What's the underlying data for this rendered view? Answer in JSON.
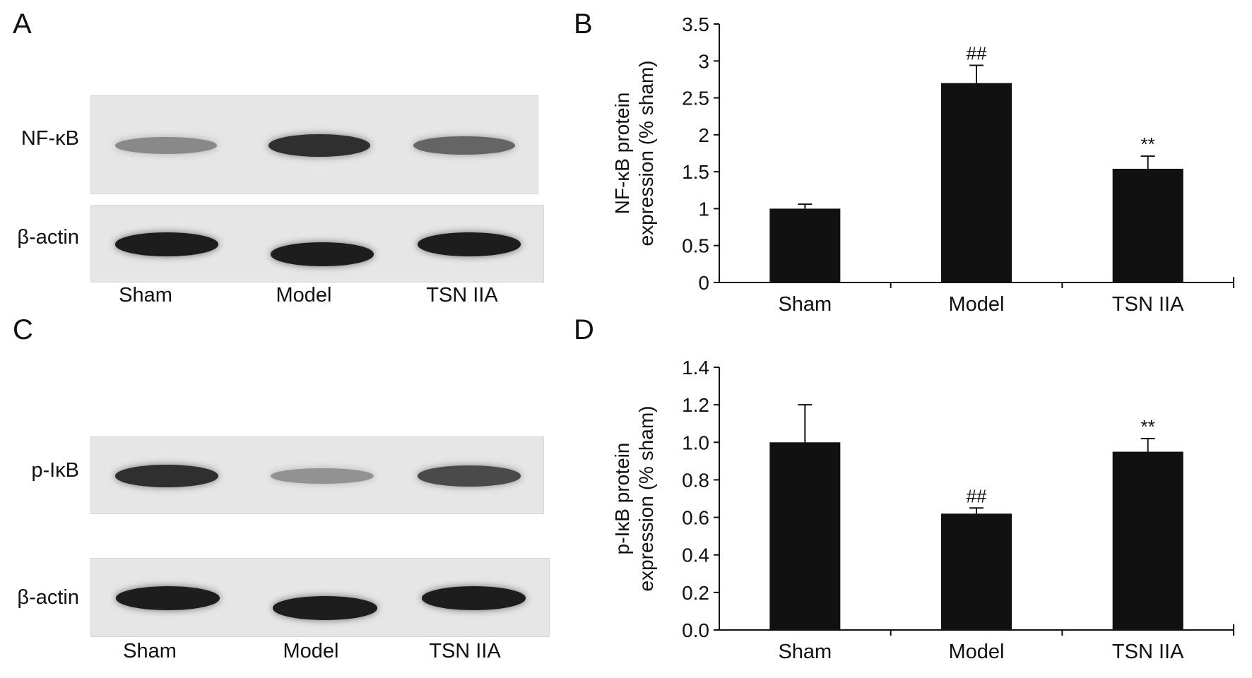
{
  "panels": {
    "A": {
      "letter": "A",
      "rows": [
        {
          "label": "NF-κB",
          "intensities": [
            0.35,
            0.85,
            0.55
          ]
        },
        {
          "label": "β-actin",
          "intensities": [
            0.95,
            0.95,
            0.95
          ]
        }
      ],
      "lanes": [
        "Sham",
        "Model",
        "TSN IIA"
      ]
    },
    "C": {
      "letter": "C",
      "rows": [
        {
          "label": "p-IκB",
          "intensities": [
            0.85,
            0.3,
            0.7
          ]
        },
        {
          "label": "β-actin",
          "intensities": [
            0.95,
            0.95,
            0.95
          ]
        }
      ],
      "lanes": [
        "Sham",
        "Model",
        "TSN IIA"
      ]
    },
    "B": {
      "letter": "B"
    },
    "D": {
      "letter": "D"
    }
  },
  "chart_data": [
    {
      "type": "bar",
      "panel": "B",
      "categories": [
        "Sham",
        "Model",
        "TSN IIA"
      ],
      "values": [
        1.0,
        2.7,
        1.54
      ],
      "errors": [
        0.06,
        0.24,
        0.17
      ],
      "annotations": [
        "",
        "##",
        "**"
      ],
      "ylabel": [
        "NF-κB protein",
        "expression (% sham)"
      ],
      "ylim": [
        0,
        3.5
      ],
      "yticks": [
        "0",
        "0.5",
        "1",
        "1.5",
        "2",
        "2.5",
        "3",
        "3.5"
      ],
      "ytick_values": [
        0,
        0.5,
        1,
        1.5,
        2,
        2.5,
        3,
        3.5
      ],
      "bar_color": "#111111"
    },
    {
      "type": "bar",
      "panel": "D",
      "categories": [
        "Sham",
        "Model",
        "TSN IIA"
      ],
      "values": [
        1.0,
        0.62,
        0.95
      ],
      "errors": [
        0.2,
        0.03,
        0.07
      ],
      "annotations": [
        "",
        "##",
        "**"
      ],
      "ylabel": [
        "p-IκB protein",
        "expression (% sham)"
      ],
      "ylim": [
        0,
        1.4
      ],
      "yticks": [
        "0.0",
        "0.2",
        "0.4",
        "0.6",
        "0.8",
        "1.0",
        "1.2",
        "1.4"
      ],
      "ytick_values": [
        0,
        0.2,
        0.4,
        0.6,
        0.8,
        1.0,
        1.2,
        1.4
      ],
      "bar_color": "#111111"
    }
  ]
}
